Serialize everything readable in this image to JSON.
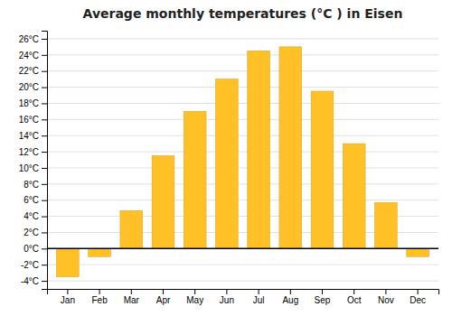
{
  "chart_data": {
    "type": "bar",
    "title": "Average monthly temperatures (°C ) in Eisen",
    "categories": [
      "Jan",
      "Feb",
      "Mar",
      "Apr",
      "May",
      "Jun",
      "Jul",
      "Aug",
      "Sep",
      "Oct",
      "Nov",
      "Dec"
    ],
    "values": [
      -3.5,
      -1.0,
      4.7,
      11.5,
      17.0,
      21.0,
      24.5,
      25.0,
      19.5,
      13.0,
      5.7,
      -1.0
    ],
    "color": "#FFC125",
    "ylim": [
      -5,
      27
    ],
    "yticks": [
      {
        "value": -4,
        "label": "-4°C"
      },
      {
        "value": -2,
        "label": "-2°C"
      },
      {
        "value": 0,
        "label": "0°C"
      },
      {
        "value": 2,
        "label": "2°C"
      },
      {
        "value": 4,
        "label": "4°C"
      },
      {
        "value": 6,
        "label": "6°C"
      },
      {
        "value": 8,
        "label": "8°C"
      },
      {
        "value": 10,
        "label": "10°C"
      },
      {
        "value": 12,
        "label": "12°C"
      },
      {
        "value": 14,
        "label": "14°C"
      },
      {
        "value": 16,
        "label": "16°C"
      },
      {
        "value": 18,
        "label": "18°C"
      },
      {
        "value": 20,
        "label": "20°C"
      },
      {
        "value": 22,
        "label": "22°C"
      },
      {
        "value": 24,
        "label": "24°C"
      },
      {
        "value": 26,
        "label": "26°C"
      }
    ],
    "grid": true
  }
}
